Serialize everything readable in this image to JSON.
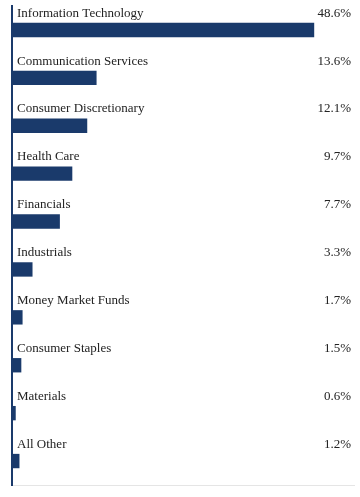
{
  "chart_data": {
    "type": "bar",
    "orientation": "horizontal",
    "categories": [
      "Information Technology",
      "Communication Services",
      "Consumer Discretionary",
      "Health Care",
      "Financials",
      "Industrials",
      "Money Market Funds",
      "Consumer Staples",
      "Materials",
      "All Other"
    ],
    "values": [
      48.6,
      13.6,
      12.1,
      9.7,
      7.7,
      3.3,
      1.7,
      1.5,
      0.6,
      1.2
    ],
    "value_labels": [
      "48.6%",
      "13.6%",
      "12.1%",
      "9.7%",
      "7.7%",
      "3.3%",
      "1.7%",
      "1.5%",
      "0.6%",
      "1.2%"
    ],
    "data_labels": true,
    "color": "#1a3a6b",
    "xlim": [
      0,
      55
    ],
    "tick_labels": false,
    "grid": false
  }
}
